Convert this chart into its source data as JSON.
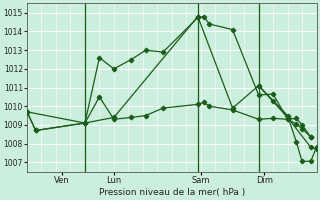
{
  "background_color": "#cceedd",
  "grid_color": "#ffffff",
  "grid_color_minor": "#ddeeee",
  "line_color": "#1a5c1a",
  "title": "Pression niveau de la mer( hPa )",
  "ylim": [
    1006.5,
    1015.5
  ],
  "yticks": [
    1007,
    1008,
    1009,
    1010,
    1011,
    1012,
    1013,
    1014,
    1015
  ],
  "xlim": [
    0,
    100
  ],
  "day_positions": [
    12,
    30,
    60,
    82
  ],
  "day_labels": [
    "Ven",
    "Lun",
    "Sam",
    "Dim"
  ],
  "vlines": [
    20,
    59,
    80
  ],
  "series1_x": [
    0,
    3,
    20,
    25,
    30,
    36,
    41,
    47,
    59,
    61,
    63,
    71,
    80,
    85,
    90,
    93,
    95,
    98
  ],
  "series1_y": [
    1009.7,
    1008.7,
    1009.1,
    1012.6,
    1012.0,
    1012.5,
    1013.0,
    1012.9,
    1014.75,
    1014.8,
    1014.4,
    1014.1,
    1010.6,
    1010.65,
    1009.3,
    1009.35,
    1009.0,
    1008.35
  ],
  "series2_x": [
    0,
    3,
    20,
    25,
    30,
    36,
    41,
    47,
    59,
    61,
    63,
    71,
    80,
    85,
    90,
    93,
    95,
    98
  ],
  "series2_y": [
    1009.7,
    1008.7,
    1009.1,
    1010.5,
    1009.3,
    1009.4,
    1009.5,
    1009.9,
    1010.1,
    1010.2,
    1010.0,
    1009.8,
    1009.3,
    1009.35,
    1009.3,
    1009.05,
    1008.8,
    1008.35
  ],
  "series3_x": [
    0,
    20,
    30,
    59,
    71,
    80,
    90,
    98,
    100
  ],
  "series3_y": [
    1009.7,
    1009.1,
    1009.4,
    1014.8,
    1009.9,
    1011.1,
    1009.4,
    1007.8,
    1007.7
  ],
  "series4_x": [
    80,
    85,
    90,
    93,
    95,
    98,
    100
  ],
  "series4_y": [
    1011.1,
    1010.3,
    1009.5,
    1008.1,
    1007.05,
    1007.05,
    1007.8
  ]
}
